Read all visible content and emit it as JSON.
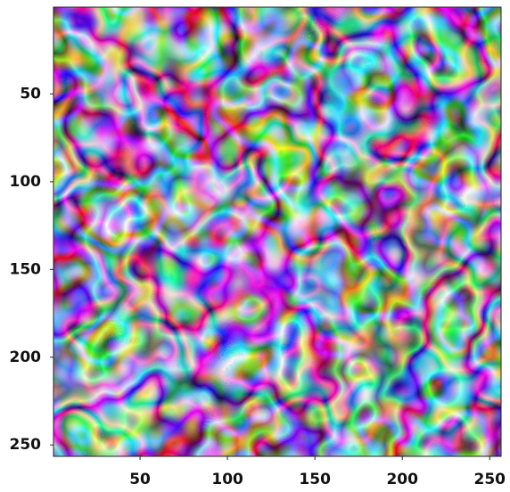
{
  "chart_data": {
    "type": "image",
    "xlim": [
      0.5,
      256.5
    ],
    "ylim": [
      256.5,
      0.5
    ],
    "xticks": [
      50,
      100,
      150,
      200,
      250
    ],
    "yticks": [
      50,
      100,
      150,
      200,
      250
    ]
  }
}
